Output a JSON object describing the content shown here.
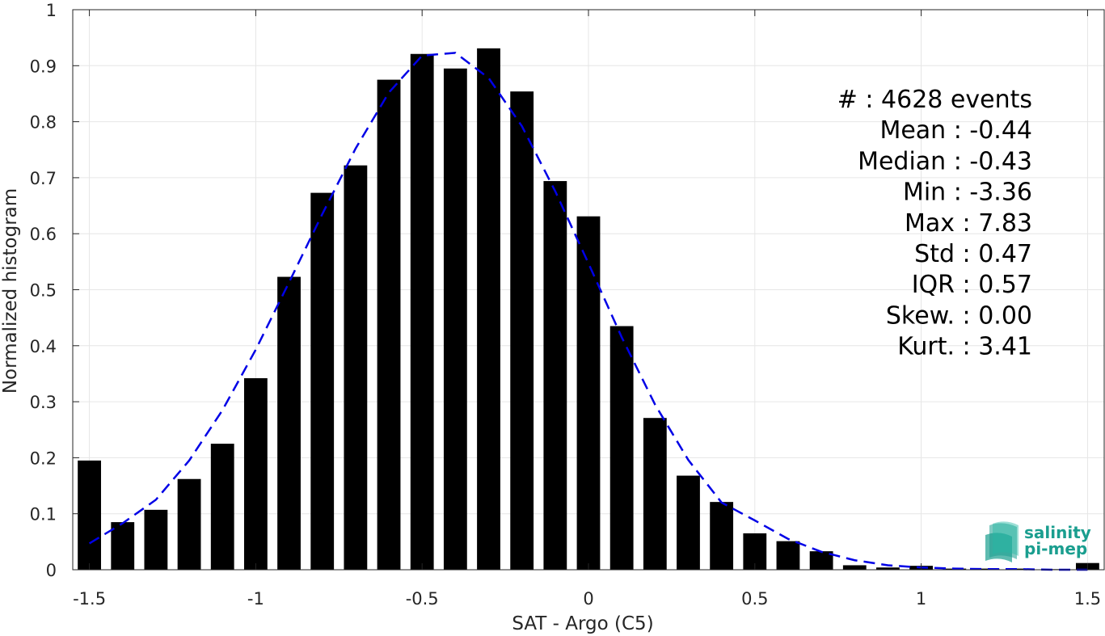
{
  "chart_data": {
    "type": "bar",
    "title": "",
    "xlabel": "SAT - Argo (C5)",
    "ylabel": "Normalized histogram",
    "xlim": [
      -1.55,
      1.55
    ],
    "ylim": [
      0,
      1
    ],
    "grid": true,
    "x_ticks": [
      {
        "value": -1.5,
        "label": "-1.5"
      },
      {
        "value": -1,
        "label": "-1"
      },
      {
        "value": -0.5,
        "label": "-0.5"
      },
      {
        "value": 0,
        "label": "0"
      },
      {
        "value": 0.5,
        "label": "0.5"
      },
      {
        "value": 1,
        "label": "1"
      },
      {
        "value": 1.5,
        "label": "1.5"
      }
    ],
    "y_ticks": [
      {
        "value": 0,
        "label": "0"
      },
      {
        "value": 0.1,
        "label": "0.1"
      },
      {
        "value": 0.2,
        "label": "0.2"
      },
      {
        "value": 0.3,
        "label": "0.3"
      },
      {
        "value": 0.4,
        "label": "0.4"
      },
      {
        "value": 0.5,
        "label": "0.5"
      },
      {
        "value": 0.6,
        "label": "0.6"
      },
      {
        "value": 0.7,
        "label": "0.7"
      },
      {
        "value": 0.8,
        "label": "0.8"
      },
      {
        "value": 0.9,
        "label": "0.9"
      },
      {
        "value": 1,
        "label": "1"
      }
    ],
    "bar_color": "#000000",
    "bins": {
      "centers": [
        -1.5,
        -1.4,
        -1.3,
        -1.2,
        -1.1,
        -1.0,
        -0.9,
        -0.8,
        -0.7,
        -0.6,
        -0.5,
        -0.4,
        -0.3,
        -0.2,
        -0.1,
        0.0,
        0.1,
        0.2,
        0.3,
        0.4,
        0.5,
        0.6,
        0.7,
        0.8,
        0.9,
        1.0,
        1.1,
        1.2,
        1.3,
        1.4,
        1.5
      ],
      "values": [
        0.195,
        0.085,
        0.107,
        0.162,
        0.225,
        0.342,
        0.523,
        0.673,
        0.722,
        0.875,
        0.921,
        0.895,
        0.931,
        0.854,
        0.694,
        0.631,
        0.435,
        0.271,
        0.168,
        0.121,
        0.065,
        0.051,
        0.033,
        0.008,
        0.004,
        0.007,
        0.002,
        0.002,
        0.002,
        0.001,
        0.012
      ]
    },
    "fit_curve": {
      "style": "dashed",
      "color": "#0000e6",
      "x": [
        -1.5,
        -1.4,
        -1.3,
        -1.2,
        -1.1,
        -1.0,
        -0.9,
        -0.8,
        -0.7,
        -0.6,
        -0.5,
        -0.4,
        -0.3,
        -0.2,
        -0.1,
        0.0,
        0.1,
        0.2,
        0.3,
        0.4,
        0.5,
        0.6,
        0.7,
        0.8,
        0.9,
        1.0,
        1.1,
        1.2,
        1.3,
        1.4,
        1.5
      ],
      "y": [
        0.047,
        0.083,
        0.125,
        0.195,
        0.285,
        0.393,
        0.513,
        0.635,
        0.752,
        0.852,
        0.918,
        0.923,
        0.878,
        0.792,
        0.676,
        0.547,
        0.415,
        0.295,
        0.196,
        0.12,
        0.088,
        0.055,
        0.032,
        0.017,
        0.008,
        0.004,
        0.002,
        0.001,
        0.001,
        0.0,
        0.0
      ]
    },
    "stats": [
      {
        "text": "#  : 4628 events"
      },
      {
        "text": "Mean : -0.44"
      },
      {
        "text": "Median : -0.43"
      },
      {
        "text": "Min : -3.36"
      },
      {
        "text": "Max : 7.83"
      },
      {
        "text": "Std : 0.47"
      },
      {
        "text": "IQR : 0.57"
      },
      {
        "text": "Skew. : 0.00"
      },
      {
        "text": "Kurt. : 3.41"
      }
    ]
  },
  "logo": {
    "line1": "salinity",
    "line2": "pi-mep",
    "color": "#1a9e8f"
  }
}
